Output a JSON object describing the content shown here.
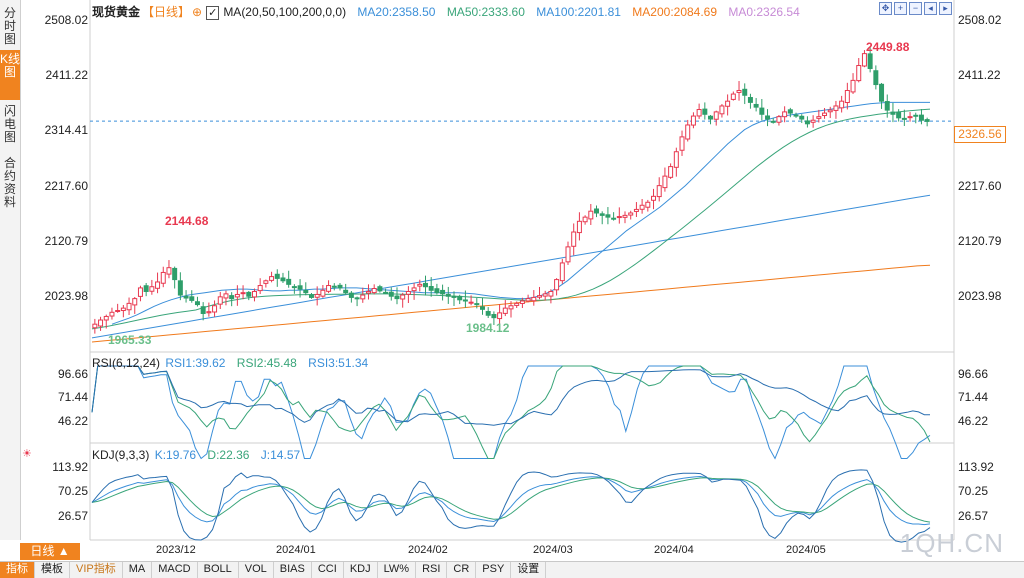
{
  "sidebar": {
    "tabs": [
      {
        "label": "分时图",
        "active": false
      },
      {
        "label": "K线图",
        "active": true
      },
      {
        "label": "闪电图",
        "active": false
      },
      {
        "label": "合约资料",
        "active": false
      }
    ]
  },
  "header": {
    "instrument": "现货黄金",
    "period_tag": "【日线】",
    "ma_params": "MA(20,50,100,200,0,0)",
    "ma20": "MA20:2358.50",
    "ma50": "MA50:2333.60",
    "ma100": "MA100:2201.81",
    "ma200": "MA200:2084.69",
    "ma0": "MA0:2326.54"
  },
  "main_axis": {
    "labels": [
      "2508.02",
      "2411.22",
      "2314.41",
      "2217.60",
      "2120.79",
      "2023.98"
    ],
    "current_price": "2326.56",
    "current_price_color": "#f0831f"
  },
  "annotations": {
    "high1": "2144.68",
    "low1": "1965.33",
    "low2": "1984.12",
    "high2": "2449.88"
  },
  "rsi": {
    "params": "RSI(6,12,24)",
    "rsi1": "RSI1:39.62",
    "rsi2": "RSI2:45.48",
    "rsi3": "RSI3:51.34",
    "labels": [
      "96.66",
      "71.44",
      "46.22"
    ]
  },
  "kdj": {
    "params": "KDJ(9,3,3)",
    "k": "K:19.76",
    "d": "D:22.36",
    "j": "J:14.57",
    "labels": [
      "113.92",
      "70.25",
      "26.57"
    ]
  },
  "dates": [
    "2023/12",
    "2024/01",
    "2024/02",
    "2024/03",
    "2024/04",
    "2024/05"
  ],
  "period_button": "日线 ▲",
  "bottom_tabs": [
    "指标",
    "模板",
    "VIP指标",
    "MA",
    "MACD",
    "BOLL",
    "VOL",
    "BIAS",
    "CCI",
    "KDJ",
    "LW%",
    "RSI",
    "CR",
    "PSY",
    "设置"
  ],
  "watermark": "1QH.CN",
  "colors": {
    "up": "#e8384f",
    "down": "#2e9e6a",
    "ma20": "#3b8fd9",
    "ma50": "#3aa57a",
    "ma100": "#3b8fd9",
    "ma200": "#f07a1c",
    "accent": "#f0831f"
  },
  "chart_data": {
    "type": "candlestick",
    "price_range": [
      1950,
      2510
    ],
    "closes": [
      1985,
      1992,
      1998,
      2005,
      2008,
      2012,
      2020,
      2028,
      2046,
      2040,
      2048,
      2056,
      2072,
      2080,
      2060,
      2034,
      2029,
      2025,
      2018,
      2003,
      2006,
      2016,
      2031,
      2036,
      2028,
      2035,
      2038,
      2032,
      2040,
      2050,
      2058,
      2065,
      2062,
      2058,
      2052,
      2048,
      2044,
      2038,
      2030,
      2035,
      2042,
      2050,
      2048,
      2046,
      2038,
      2030,
      2028,
      2034,
      2040,
      2045,
      2041,
      2038,
      2032,
      2028,
      2034,
      2040,
      2046,
      2052,
      2048,
      2042,
      2038,
      2036,
      2032,
      2030,
      2026,
      2024,
      2022,
      2018,
      2010,
      2000,
      1996,
      2004,
      2012,
      2016,
      2020,
      2024,
      2028,
      2030,
      2033,
      2036,
      2040,
      2060,
      2088,
      2115,
      2140,
      2158,
      2165,
      2175,
      2172,
      2168,
      2165,
      2163,
      2166,
      2168,
      2172,
      2178,
      2185,
      2190,
      2200,
      2218,
      2234,
      2250,
      2275,
      2300,
      2320,
      2335,
      2346,
      2338,
      2330,
      2342,
      2352,
      2360,
      2372,
      2378,
      2370,
      2358,
      2350,
      2338,
      2330,
      2326,
      2334,
      2342,
      2340,
      2336,
      2330,
      2322,
      2328,
      2334,
      2340,
      2345,
      2352,
      2360,
      2378,
      2395,
      2420,
      2440,
      2415,
      2388,
      2360,
      2345,
      2338,
      2332,
      2330,
      2334,
      2336,
      2328,
      2326
    ],
    "ma20": [
      1985,
      1990,
      1995,
      2001,
      2008,
      2015,
      2021,
      2026,
      2030,
      2034,
      2036,
      2038,
      2040,
      2042,
      2043,
      2044,
      2044,
      2043,
      2042,
      2041,
      2041,
      2042,
      2042,
      2043,
      2044,
      2044,
      2045,
      2046,
      2046,
      2046,
      2045,
      2044,
      2043,
      2042,
      2041,
      2040,
      2039,
      2038,
      2038,
      2038,
      2038,
      2038,
      2037,
      2036,
      2034,
      2032,
      2030,
      2029,
      2028,
      2028,
      2030,
      2034,
      2040,
      2048,
      2058,
      2070,
      2082,
      2094,
      2106,
      2118,
      2130,
      2142,
      2152,
      2162,
      2172,
      2182,
      2194,
      2206,
      2218,
      2232,
      2246,
      2260,
      2274,
      2288,
      2300,
      2312,
      2320,
      2326,
      2330,
      2334,
      2336,
      2338,
      2340,
      2342,
      2344,
      2346,
      2348,
      2350,
      2352,
      2354,
      2356,
      2357,
      2358,
      2358,
      2358,
      2358,
      2358,
      2358
    ],
    "ma100": [
      1962,
      1966,
      1970,
      1974,
      1978,
      1982,
      1986,
      1990,
      1994,
      1998,
      2002,
      2006,
      2010,
      2014,
      2018,
      2022,
      2026,
      2030,
      2034,
      2038,
      2042,
      2046,
      2050,
      2054,
      2058,
      2062,
      2066,
      2070,
      2074,
      2078,
      2082,
      2086,
      2090,
      2094,
      2098,
      2102,
      2106,
      2110,
      2114,
      2118,
      2122,
      2126,
      2130,
      2134,
      2138,
      2142,
      2146,
      2150,
      2154,
      2158,
      2162,
      2166,
      2170,
      2174,
      2178,
      2182,
      2186,
      2190,
      2194,
      2198,
      2202
    ],
    "ma200": [
      1955,
      1957,
      1959,
      1961,
      1963,
      1965,
      1967,
      1969,
      1971,
      1973,
      1975,
      1977,
      1979,
      1981,
      1983,
      1985,
      1987,
      1989,
      1991,
      1993,
      1995,
      1997,
      1999,
      2001,
      2003,
      2005,
      2007,
      2009,
      2011,
      2013,
      2015,
      2017,
      2019,
      2021,
      2023,
      2025,
      2027,
      2029,
      2031,
      2033,
      2035,
      2037,
      2039,
      2041,
      2043,
      2045,
      2047,
      2049,
      2051,
      2053,
      2055,
      2057,
      2059,
      2061,
      2063,
      2065,
      2067,
      2069,
      2071,
      2073,
      2075,
      2077,
      2079,
      2081,
      2083,
      2084
    ]
  }
}
